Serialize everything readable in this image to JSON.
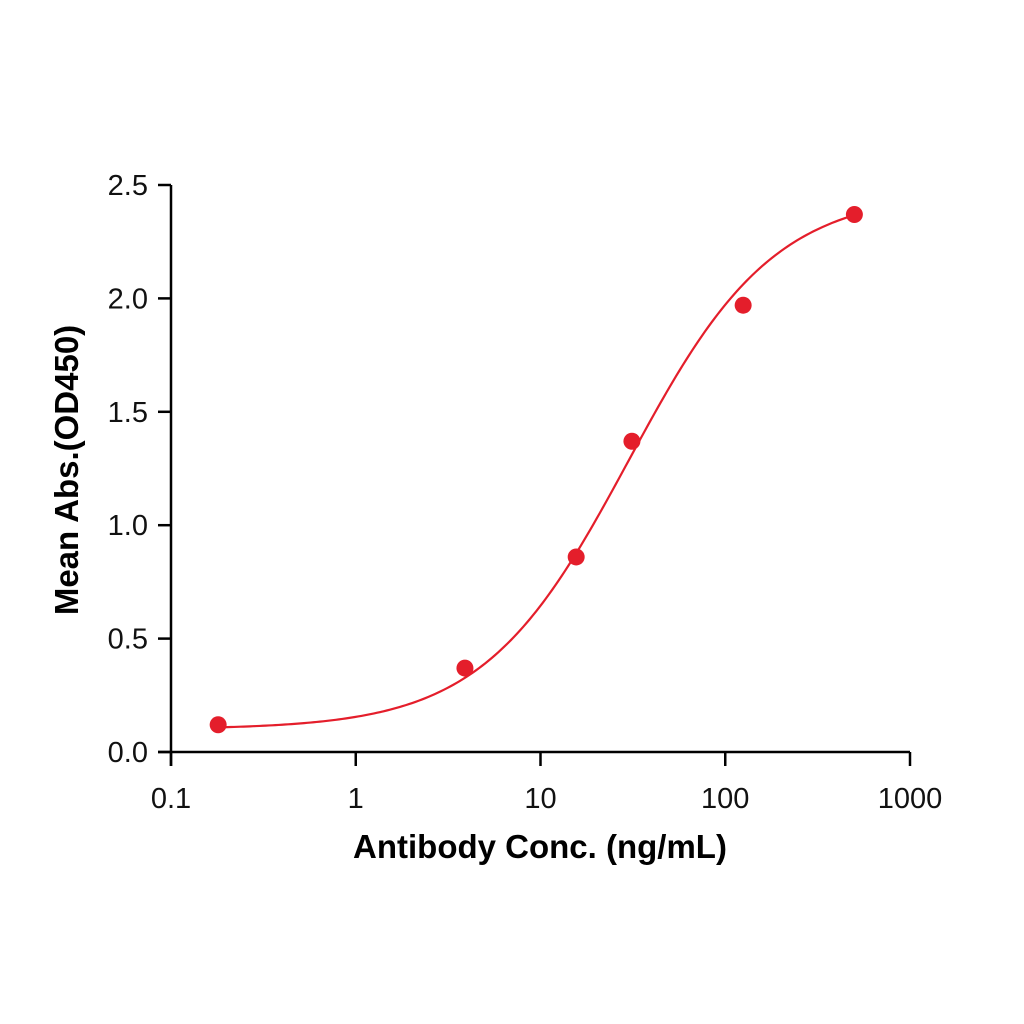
{
  "chart_data": {
    "type": "scatter",
    "title": "",
    "xlabel": "Antibody Conc. (ng/mL)",
    "ylabel": "Mean Abs.(OD450)",
    "xscale": "log",
    "xlim": [
      0.1,
      1000
    ],
    "ylim": [
      0,
      2.5
    ],
    "x_ticks": [
      0.1,
      1,
      10,
      100,
      1000
    ],
    "x_tick_labels": [
      "0.1",
      "1",
      "10",
      "100",
      "1000"
    ],
    "y_ticks": [
      0,
      0.5,
      1.0,
      1.5,
      2.0,
      2.5
    ],
    "y_tick_labels": [
      "0.0",
      "0.5",
      "1.0",
      "1.5",
      "2.0",
      "2.5"
    ],
    "grid": false,
    "legend": null,
    "series": [
      {
        "name": "Mean Abs.",
        "color": "#E41E2B",
        "marker": "circle",
        "x": [
          0.18,
          3.9,
          15.6,
          31.25,
          125,
          500
        ],
        "y": [
          0.12,
          0.37,
          0.86,
          1.37,
          1.97,
          2.37
        ]
      }
    ],
    "fit_curve": {
      "model": "4PL",
      "color": "#E41E2B",
      "bottom": 0.1,
      "top": 2.47,
      "ec50": 30,
      "hill": 1.1,
      "x_range": [
        0.18,
        500
      ]
    }
  }
}
